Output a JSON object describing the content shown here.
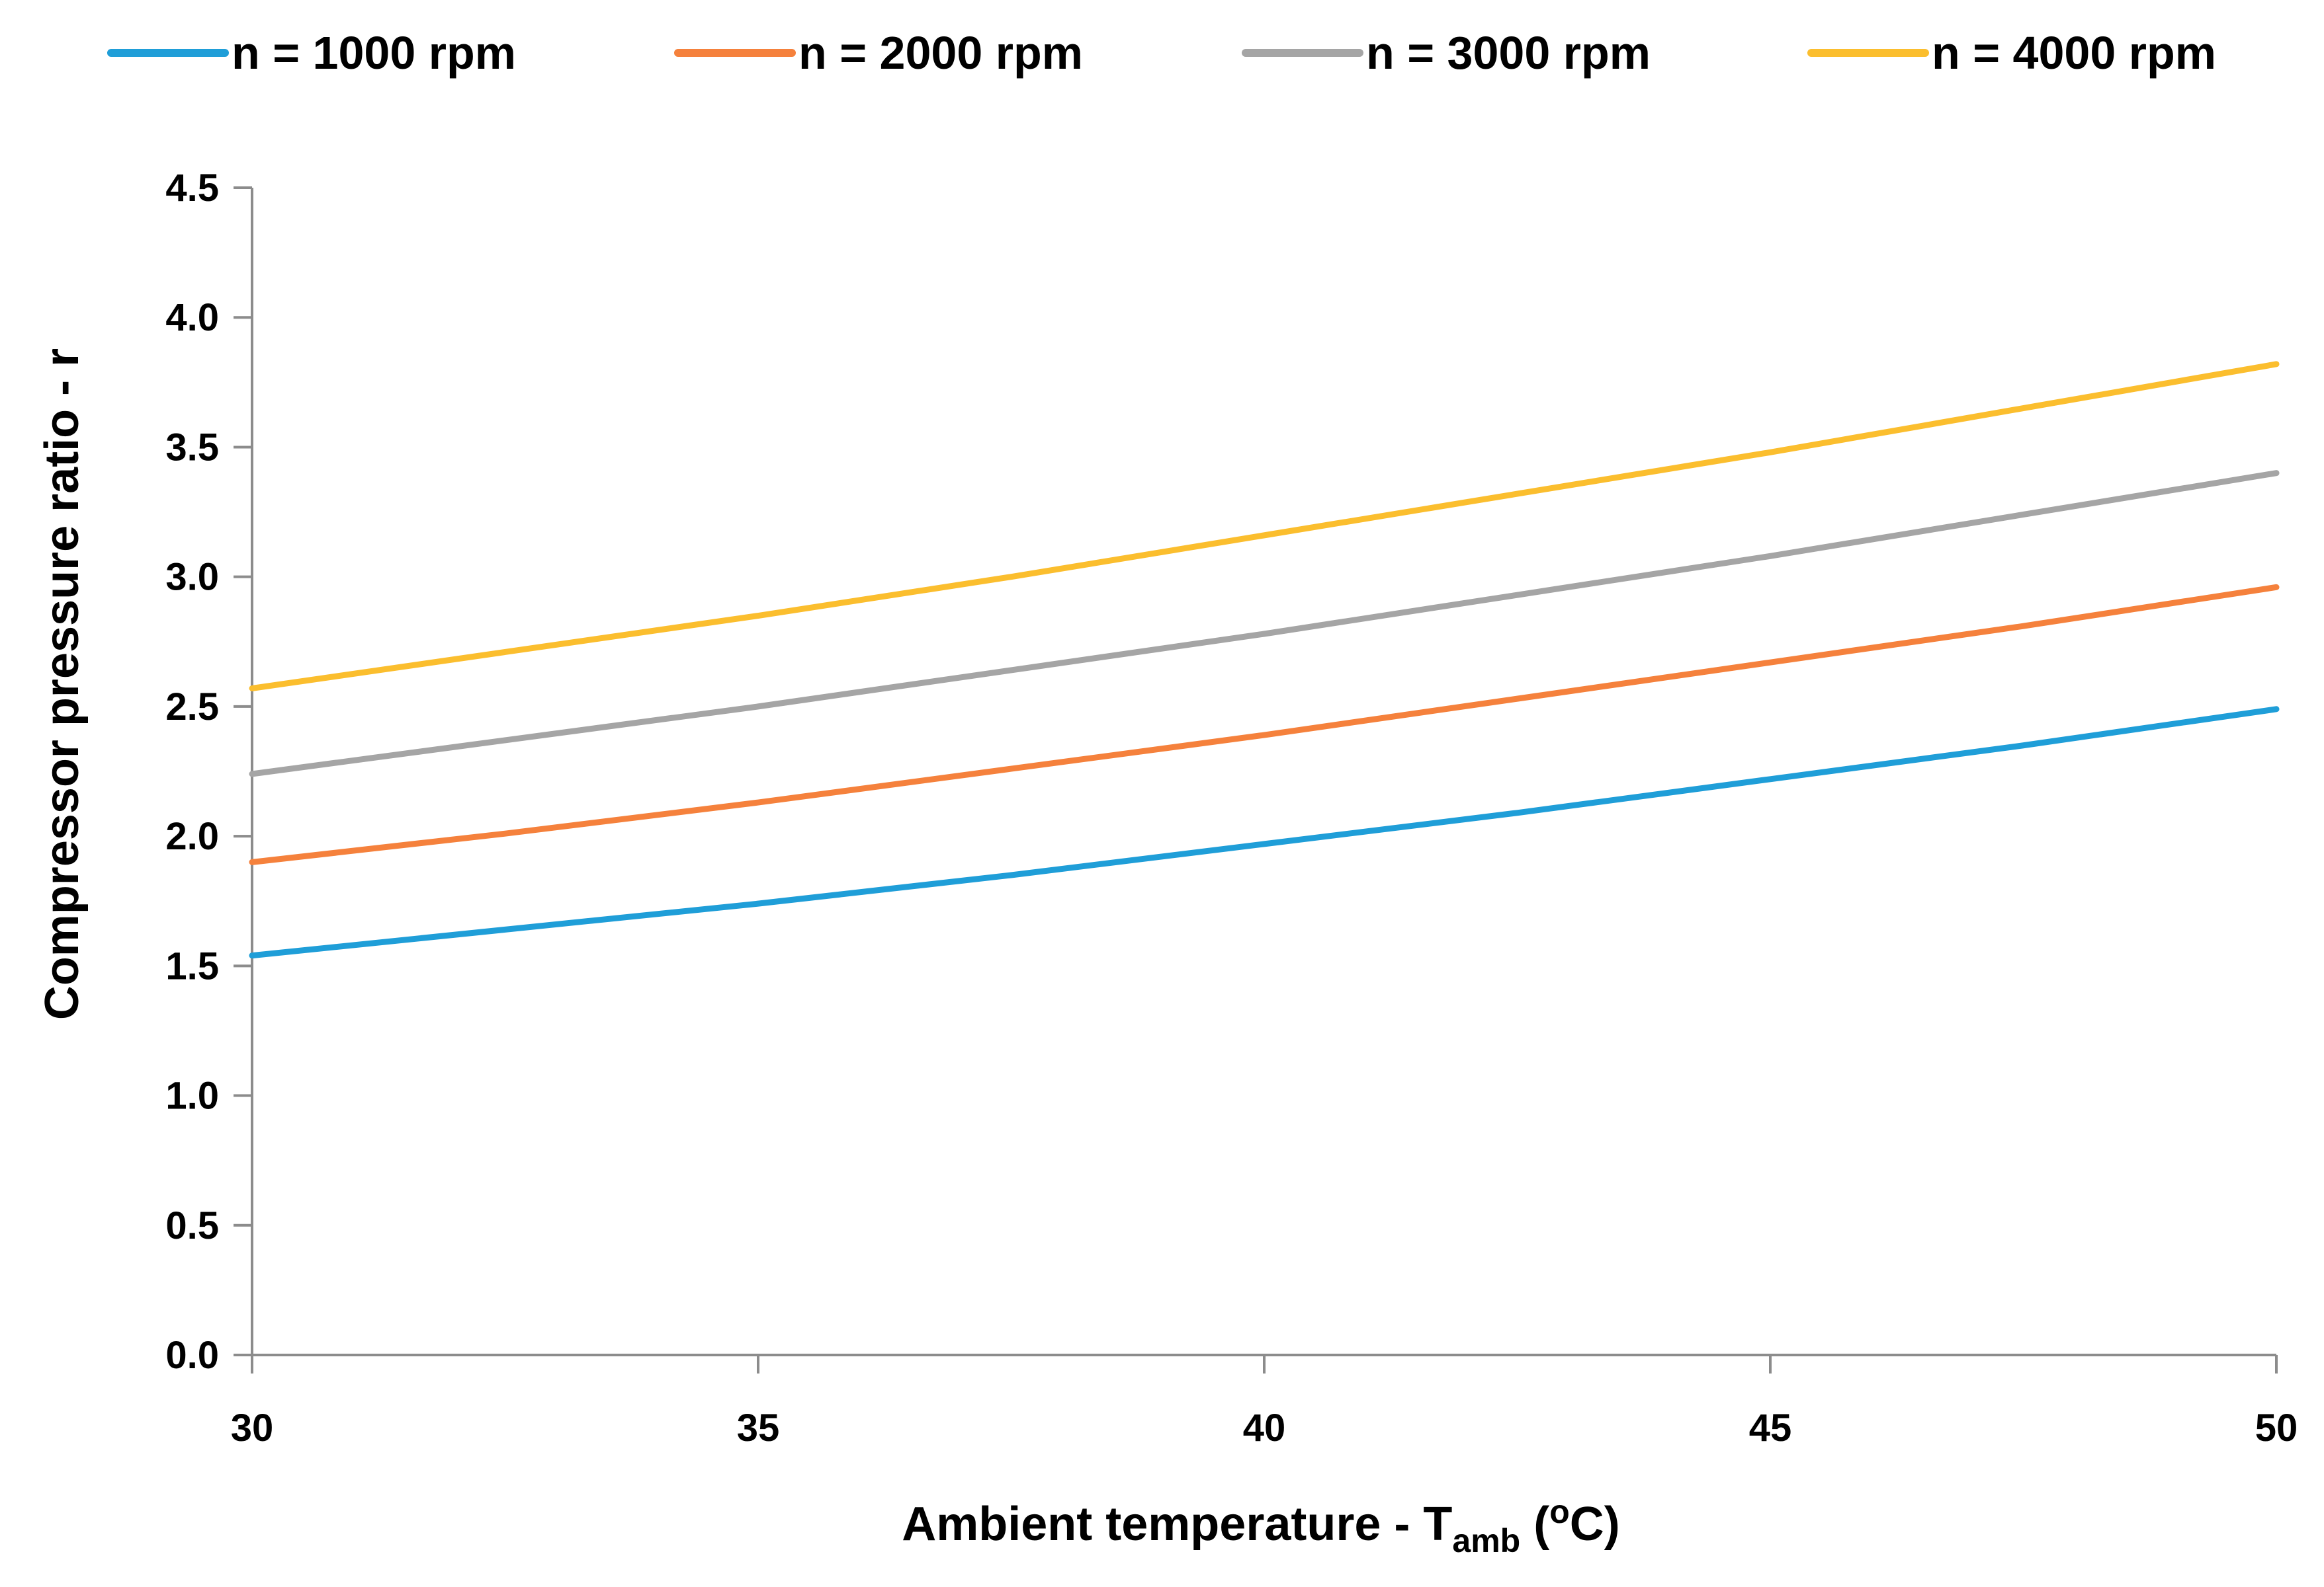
{
  "chart_data": {
    "type": "line",
    "title": "",
    "xlabel": {
      "main": "Ambient temperature - T",
      "sub": "amb",
      "open": " (",
      "sup": "o",
      "unit": "C)"
    },
    "ylabel": "Compressor pressure ratio - r",
    "xlim": [
      30,
      50
    ],
    "ylim": [
      0,
      4.5
    ],
    "x_ticks": [
      "30",
      "35",
      "40",
      "45",
      "50"
    ],
    "y_ticks": [
      "0.0",
      "0.5",
      "1.0",
      "1.5",
      "2.0",
      "2.5",
      "3.0",
      "3.5",
      "4.0",
      "4.5"
    ],
    "grid": false,
    "legend_position": "top",
    "x": [
      30,
      32.5,
      35,
      37.5,
      40,
      42.5,
      45,
      47.5,
      50
    ],
    "series": [
      {
        "name": "n = 1000 rpm",
        "color": "#1F9ED8",
        "values": [
          1.54,
          1.64,
          1.74,
          1.85,
          1.97,
          2.09,
          2.22,
          2.35,
          2.49
        ]
      },
      {
        "name": "n = 2000 rpm",
        "color": "#F5813C",
        "values": [
          1.9,
          2.01,
          2.13,
          2.26,
          2.39,
          2.53,
          2.67,
          2.81,
          2.96
        ]
      },
      {
        "name": "n = 3000 rpm",
        "color": "#A5A5A5",
        "values": [
          2.24,
          2.37,
          2.5,
          2.64,
          2.78,
          2.93,
          3.08,
          3.24,
          3.4
        ]
      },
      {
        "name": "n = 4000 rpm",
        "color": "#FBBE2E",
        "values": [
          2.57,
          2.71,
          2.85,
          3.0,
          3.16,
          3.32,
          3.48,
          3.65,
          3.82
        ]
      }
    ]
  }
}
